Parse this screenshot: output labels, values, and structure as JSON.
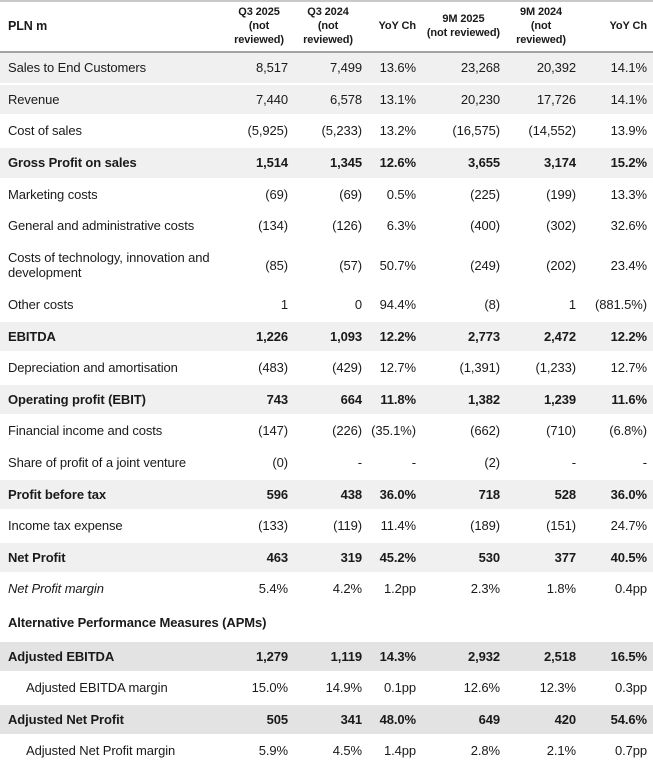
{
  "table": {
    "unit_label": "PLN m",
    "columns": [
      {
        "label": "Q3 2025",
        "note": "(not reviewed)"
      },
      {
        "label": "Q3 2024",
        "note": "(not reviewed)"
      },
      {
        "label": "YoY Ch",
        "note": ""
      },
      {
        "label": "9M 2025",
        "note": "(not reviewed)"
      },
      {
        "label": "9M 2024",
        "note": "(not reviewed)"
      },
      {
        "label": "YoY Ch",
        "note": ""
      }
    ],
    "rows": [
      {
        "label": "Sales to End Customers",
        "style": "shaded",
        "values": [
          "8,517",
          "7,499",
          "13.6%",
          "23,268",
          "20,392",
          "14.1%"
        ]
      },
      {
        "label": "Revenue",
        "style": "shaded",
        "values": [
          "7,440",
          "6,578",
          "13.1%",
          "20,230",
          "17,726",
          "14.1%"
        ]
      },
      {
        "label": "Cost of sales",
        "style": "plain",
        "values": [
          "(5,925)",
          "(5,233)",
          "13.2%",
          "(16,575)",
          "(14,552)",
          "13.9%"
        ]
      },
      {
        "label": "Gross Profit on sales",
        "style": "shaded-bold",
        "values": [
          "1,514",
          "1,345",
          "12.6%",
          "3,655",
          "3,174",
          "15.2%"
        ]
      },
      {
        "label": "Marketing costs",
        "style": "plain",
        "values": [
          "(69)",
          "(69)",
          "0.5%",
          "(225)",
          "(199)",
          "13.3%"
        ]
      },
      {
        "label": "General and administrative costs",
        "style": "plain",
        "values": [
          "(134)",
          "(126)",
          "6.3%",
          "(400)",
          "(302)",
          "32.6%"
        ]
      },
      {
        "label": "Costs of technology, innovation and development",
        "style": "plain",
        "values": [
          "(85)",
          "(57)",
          "50.7%",
          "(249)",
          "(202)",
          "23.4%"
        ]
      },
      {
        "label": "Other costs",
        "style": "plain",
        "values": [
          "1",
          "0",
          "94.4%",
          "(8)",
          "1",
          "(881.5%)"
        ]
      },
      {
        "label": "EBITDA",
        "style": "shaded-bold",
        "values": [
          "1,226",
          "1,093",
          "12.2%",
          "2,773",
          "2,472",
          "12.2%"
        ]
      },
      {
        "label": "Depreciation and amortisation",
        "style": "plain",
        "values": [
          "(483)",
          "(429)",
          "12.7%",
          "(1,391)",
          "(1,233)",
          "12.7%"
        ]
      },
      {
        "label": "Operating profit (EBIT)",
        "style": "shaded-bold",
        "values": [
          "743",
          "664",
          "11.8%",
          "1,382",
          "1,239",
          "11.6%"
        ]
      },
      {
        "label": "Financial income and costs",
        "style": "plain",
        "values": [
          "(147)",
          "(226)",
          "(35.1%)",
          "(662)",
          "(710)",
          "(6.8%)"
        ]
      },
      {
        "label": "Share of profit of a joint venture",
        "style": "plain",
        "values": [
          "(0)",
          "-",
          "-",
          "(2)",
          "-",
          "-"
        ]
      },
      {
        "label": "Profit before tax",
        "style": "shaded-bold",
        "values": [
          "596",
          "438",
          "36.0%",
          "718",
          "528",
          "36.0%"
        ]
      },
      {
        "label": "Income tax expense",
        "style": "plain",
        "values": [
          "(133)",
          "(119)",
          "11.4%",
          "(189)",
          "(151)",
          "24.7%"
        ]
      },
      {
        "label": "Net Profit",
        "style": "shaded-bold",
        "values": [
          "463",
          "319",
          "45.2%",
          "530",
          "377",
          "40.5%"
        ]
      },
      {
        "label": "Net Profit margin",
        "style": "italic",
        "values": [
          "5.4%",
          "4.2%",
          "1.2pp",
          "2.3%",
          "1.8%",
          "0.4pp"
        ]
      },
      {
        "label": "Alternative Performance Measures (APMs)",
        "style": "section",
        "values": []
      },
      {
        "label": "Adjusted EBITDA",
        "style": "apm-bold",
        "values": [
          "1,279",
          "1,119",
          "14.3%",
          "2,932",
          "2,518",
          "16.5%"
        ]
      },
      {
        "label": "Adjusted EBITDA margin",
        "style": "indent",
        "values": [
          "15.0%",
          "14.9%",
          "0.1pp",
          "12.6%",
          "12.3%",
          "0.3pp"
        ]
      },
      {
        "label": "Adjusted Net Profit",
        "style": "apm-bold",
        "values": [
          "505",
          "341",
          "48.0%",
          "649",
          "420",
          "54.6%"
        ]
      },
      {
        "label": "Adjusted Net Profit margin",
        "style": "indent",
        "values": [
          "5.9%",
          "4.5%",
          "1.4pp",
          "2.8%",
          "2.1%",
          "0.7pp"
        ]
      }
    ],
    "colors": {
      "text": "#1a1a1a",
      "row_shade": "#f0f0f0",
      "apm_row_shade": "#e3e3e3",
      "top_border": "#c9c9c9",
      "header_border": "#a2a2a2"
    }
  }
}
